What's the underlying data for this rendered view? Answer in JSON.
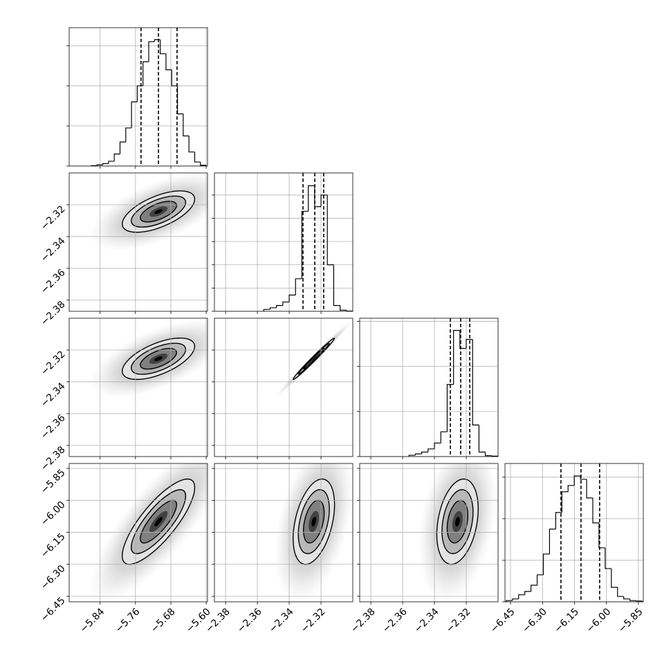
{
  "chart_data": {
    "type": "corner",
    "params": [
      {
        "lim": [
          -5.91,
          -5.597
        ],
        "ticks": [
          {
            "value": -5.84,
            "label": "−5.84"
          },
          {
            "value": -5.76,
            "label": "−5.76"
          },
          {
            "value": -5.68,
            "label": "−5.68"
          },
          {
            "value": -5.6,
            "label": "−5.60"
          }
        ]
      },
      {
        "lim": [
          -2.387,
          -2.3
        ],
        "ticks": [
          {
            "value": -2.38,
            "label": "−2.38"
          },
          {
            "value": -2.36,
            "label": "−2.36"
          },
          {
            "value": -2.34,
            "label": "−2.34"
          },
          {
            "value": -2.32,
            "label": "−2.32"
          }
        ]
      },
      {
        "lim": [
          -2.387,
          -2.3
        ],
        "ticks": [
          {
            "value": -2.38,
            "label": "−2.38"
          },
          {
            "value": -2.36,
            "label": "−2.36"
          },
          {
            "value": -2.34,
            "label": "−2.34"
          },
          {
            "value": -2.32,
            "label": "−2.32"
          }
        ]
      },
      {
        "lim": [
          -6.476,
          -5.827
        ],
        "ticks": [
          {
            "value": -6.45,
            "label": "−6.45"
          },
          {
            "value": -6.3,
            "label": "−6.30"
          },
          {
            "value": -6.15,
            "label": "−6.15"
          },
          {
            "value": -6.0,
            "label": "−6.00"
          },
          {
            "value": -5.85,
            "label": "−5.85"
          }
        ]
      }
    ],
    "histograms": [
      {
        "bins": [
          -5.86,
          -5.847,
          -5.834,
          -5.821,
          -5.808,
          -5.795,
          -5.782,
          -5.769,
          -5.756,
          -5.743,
          -5.73,
          -5.717,
          -5.704,
          -5.691,
          -5.678,
          -5.665,
          -5.652,
          -5.639,
          -5.626,
          -5.613,
          -5.6
        ],
        "values": [
          0.01,
          0.03,
          0.06,
          0.12,
          0.3,
          0.6,
          0.95,
          1.6,
          2.0,
          2.6,
          3.1,
          3.15,
          2.8,
          2.4,
          2.0,
          1.3,
          0.75,
          0.35,
          0.1,
          0.02
        ],
        "ylim": [
          0,
          3.45
        ],
        "yticks": [
          0,
          1,
          2,
          3
        ],
        "quantiles": [
          -5.7475,
          -5.708,
          -5.666
        ]
      },
      {
        "bins": [
          -2.356,
          -2.352,
          -2.348,
          -2.344,
          -2.34,
          -2.336,
          -2.332,
          -2.328,
          -2.324,
          -2.32,
          -2.316,
          -2.312,
          -2.308,
          -2.304,
          -2.3
        ],
        "values": [
          0.08,
          0.15,
          0.25,
          0.4,
          0.7,
          1.4,
          4.3,
          5.4,
          4.5,
          5.0,
          2.0,
          0.25,
          0.05,
          0.01
        ],
        "ylim": [
          0,
          5.95
        ],
        "yticks": [
          0,
          1,
          2,
          3,
          4,
          5
        ],
        "quantiles": [
          -2.3313,
          -2.3239,
          -2.3183
        ]
      },
      {
        "bins": [
          -2.356,
          -2.352,
          -2.348,
          -2.344,
          -2.34,
          -2.336,
          -2.332,
          -2.328,
          -2.324,
          -2.32,
          -2.316,
          -2.312,
          -2.308,
          -2.304,
          -2.3
        ],
        "values": [
          0.03,
          0.06,
          0.1,
          0.17,
          0.3,
          0.55,
          1.6,
          2.8,
          2.4,
          2.6,
          0.7,
          0.1,
          0.02,
          0.01
        ],
        "ylim": [
          0,
          3.07
        ],
        "yticks": [
          0,
          1,
          2,
          3
        ],
        "quantiles": [
          -2.33,
          -2.3235,
          -2.3178
        ]
      },
      {
        "bins": [
          -6.47,
          -6.441,
          -6.412,
          -6.383,
          -6.354,
          -6.325,
          -6.296,
          -6.267,
          -6.238,
          -6.209,
          -6.18,
          -6.151,
          -6.122,
          -6.093,
          -6.064,
          -6.035,
          -6.006,
          -5.977,
          -5.948,
          -5.919,
          -5.89,
          -5.861,
          -5.832
        ],
        "values": [
          0.03,
          0.07,
          0.17,
          0.25,
          0.4,
          0.65,
          1.15,
          1.75,
          2.15,
          2.65,
          2.8,
          3.03,
          2.95,
          2.5,
          1.9,
          1.3,
          0.8,
          0.35,
          0.13,
          0.07,
          0.03,
          0.02
        ],
        "ylim": [
          0,
          3.33
        ],
        "yticks": [
          0,
          1,
          2,
          3
        ],
        "quantiles": [
          -6.2135,
          -6.1195,
          -6.032
        ]
      }
    ],
    "pairs": [
      {
        "x": 0,
        "y": 1,
        "mean": [
          -5.708,
          -2.3243
        ],
        "sd": [
          0.041,
          0.0065
        ],
        "corr": 0.6
      },
      {
        "x": 0,
        "y": 2,
        "mean": [
          -5.708,
          -2.3255
        ],
        "sd": [
          0.041,
          0.0065
        ],
        "corr": 0.6
      },
      {
        "x": 1,
        "y": 2,
        "mean": [
          -2.3245,
          -2.3255
        ],
        "sd": [
          0.0065,
          0.0065
        ],
        "corr": 0.99
      },
      {
        "x": 0,
        "y": 3,
        "mean": [
          -5.708,
          -6.1
        ],
        "sd": [
          0.041,
          0.1
        ],
        "corr": 0.8
      },
      {
        "x": 1,
        "y": 3,
        "mean": [
          -2.3245,
          -6.1
        ],
        "sd": [
          0.0065,
          0.1
        ],
        "corr": 0.4
      },
      {
        "x": 2,
        "y": 3,
        "mean": [
          -2.3255,
          -6.1
        ],
        "sd": [
          0.0065,
          0.1
        ],
        "corr": 0.3
      }
    ],
    "levels": [
      0.5,
      1,
      1.5,
      2
    ],
    "grid": true
  }
}
